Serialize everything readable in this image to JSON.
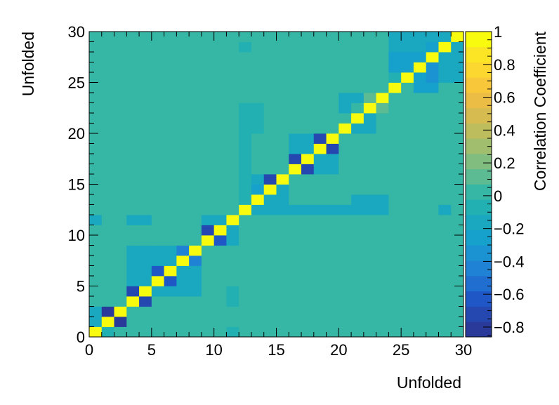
{
  "chart_data": {
    "type": "heatmap",
    "title": "",
    "xlabel": "Unfolded",
    "ylabel": "Unfolded",
    "zlabel": "Correlation Coefficient",
    "xlim": [
      0,
      30
    ],
    "ylim": [
      0,
      30
    ],
    "zlim": [
      -0.86,
      1.0
    ],
    "nbins": 30,
    "x_ticks": [
      "0",
      "5",
      "10",
      "15",
      "20",
      "25",
      "30"
    ],
    "y_ticks": [
      "0",
      "5",
      "10",
      "15",
      "20",
      "25",
      "30"
    ],
    "z_ticks": [
      "−0.8",
      "−0.6",
      "−0.4",
      "−0.2",
      "0",
      "0.2",
      "0.4",
      "0.6",
      "0.8",
      "1"
    ],
    "z_tick_values": [
      -0.8,
      -0.6,
      -0.4,
      -0.2,
      0,
      0.2,
      0.4,
      0.6,
      0.8,
      1
    ],
    "palette": [
      "#2a3a9a",
      "#2447b0",
      "#1f58c6",
      "#1f6ed0",
      "#1f82d4",
      "#1b93d2",
      "#16a0cc",
      "#1aa8c0",
      "#22b0b2",
      "#36b6a4",
      "#5cbb92",
      "#80bd7f",
      "#a0be6d",
      "#bdbd5e",
      "#d6bb50",
      "#ecbd44",
      "#f9c83a",
      "#fbd730",
      "#fbe524",
      "#f9fb0e"
    ],
    "background_value": 0.0,
    "cells": [
      {
        "x": 0,
        "y": 0,
        "v": 1
      },
      {
        "x": 1,
        "y": 1,
        "v": 1
      },
      {
        "x": 2,
        "y": 2,
        "v": 1
      },
      {
        "x": 3,
        "y": 3,
        "v": 1
      },
      {
        "x": 4,
        "y": 4,
        "v": 1
      },
      {
        "x": 5,
        "y": 5,
        "v": 1
      },
      {
        "x": 6,
        "y": 6,
        "v": 1
      },
      {
        "x": 7,
        "y": 7,
        "v": 1
      },
      {
        "x": 8,
        "y": 8,
        "v": 1
      },
      {
        "x": 9,
        "y": 9,
        "v": 1
      },
      {
        "x": 10,
        "y": 10,
        "v": 1
      },
      {
        "x": 11,
        "y": 11,
        "v": 1
      },
      {
        "x": 12,
        "y": 12,
        "v": 1
      },
      {
        "x": 13,
        "y": 13,
        "v": 1
      },
      {
        "x": 14,
        "y": 14,
        "v": 1
      },
      {
        "x": 15,
        "y": 15,
        "v": 1
      },
      {
        "x": 16,
        "y": 16,
        "v": 1
      },
      {
        "x": 17,
        "y": 17,
        "v": 1
      },
      {
        "x": 18,
        "y": 18,
        "v": 1
      },
      {
        "x": 19,
        "y": 19,
        "v": 1
      },
      {
        "x": 20,
        "y": 20,
        "v": 1
      },
      {
        "x": 21,
        "y": 21,
        "v": 1
      },
      {
        "x": 22,
        "y": 22,
        "v": 1
      },
      {
        "x": 23,
        "y": 23,
        "v": 1
      },
      {
        "x": 24,
        "y": 24,
        "v": 1
      },
      {
        "x": 25,
        "y": 25,
        "v": 1
      },
      {
        "x": 26,
        "y": 26,
        "v": 1
      },
      {
        "x": 27,
        "y": 27,
        "v": 1
      },
      {
        "x": 28,
        "y": 28,
        "v": 1
      },
      {
        "x": 29,
        "y": 29,
        "v": 1
      },
      {
        "x": 1,
        "y": 0,
        "v": -0.05
      },
      {
        "x": 0,
        "y": 1,
        "v": -0.12
      },
      {
        "x": 2,
        "y": 1,
        "v": -0.82
      },
      {
        "x": 1,
        "y": 2,
        "v": -0.82
      },
      {
        "x": 0,
        "y": 2,
        "v": -0.12
      },
      {
        "x": 4,
        "y": 3,
        "v": -0.72
      },
      {
        "x": 3,
        "y": 4,
        "v": -0.68
      },
      {
        "x": 5,
        "y": 4,
        "v": -0.12
      },
      {
        "x": 6,
        "y": 4,
        "v": -0.12
      },
      {
        "x": 7,
        "y": 4,
        "v": -0.12
      },
      {
        "x": 8,
        "y": 4,
        "v": -0.12
      },
      {
        "x": 11,
        "y": 3,
        "v": -0.05
      },
      {
        "x": 11,
        "y": 4,
        "v": -0.05
      },
      {
        "x": 6,
        "y": 5,
        "v": -0.6
      },
      {
        "x": 5,
        "y": 6,
        "v": -0.6
      },
      {
        "x": 7,
        "y": 5,
        "v": -0.18
      },
      {
        "x": 8,
        "y": 5,
        "v": -0.18
      },
      {
        "x": 7,
        "y": 6,
        "v": -0.18
      },
      {
        "x": 8,
        "y": 6,
        "v": -0.18
      },
      {
        "x": 8,
        "y": 7,
        "v": -0.42
      },
      {
        "x": 7,
        "y": 8,
        "v": -0.48
      },
      {
        "x": 3,
        "y": 5,
        "v": -0.12
      },
      {
        "x": 3,
        "y": 6,
        "v": -0.12
      },
      {
        "x": 3,
        "y": 7,
        "v": -0.12
      },
      {
        "x": 3,
        "y": 8,
        "v": -0.12
      },
      {
        "x": 4,
        "y": 5,
        "v": -0.12
      },
      {
        "x": 4,
        "y": 6,
        "v": -0.12
      },
      {
        "x": 4,
        "y": 7,
        "v": -0.12
      },
      {
        "x": 4,
        "y": 8,
        "v": -0.12
      },
      {
        "x": 5,
        "y": 7,
        "v": -0.18
      },
      {
        "x": 5,
        "y": 8,
        "v": -0.18
      },
      {
        "x": 6,
        "y": 7,
        "v": -0.18
      },
      {
        "x": 6,
        "y": 8,
        "v": -0.18
      },
      {
        "x": 10,
        "y": 9,
        "v": -0.6
      },
      {
        "x": 9,
        "y": 10,
        "v": -0.68
      },
      {
        "x": 11,
        "y": 9,
        "v": -0.12
      },
      {
        "x": 11,
        "y": 10,
        "v": -0.12
      },
      {
        "x": 9,
        "y": 11,
        "v": -0.12
      },
      {
        "x": 10,
        "y": 11,
        "v": -0.12
      },
      {
        "x": 0,
        "y": 11,
        "v": -0.12
      },
      {
        "x": 3,
        "y": 11,
        "v": -0.12
      },
      {
        "x": 4,
        "y": 11,
        "v": -0.12
      },
      {
        "x": 11,
        "y": 0,
        "v": -0.05
      },
      {
        "x": 12,
        "y": 13,
        "v": -0.05
      },
      {
        "x": 13,
        "y": 12,
        "v": -0.12
      },
      {
        "x": 14,
        "y": 12,
        "v": -0.12
      },
      {
        "x": 15,
        "y": 12,
        "v": -0.12
      },
      {
        "x": 16,
        "y": 12,
        "v": -0.12
      },
      {
        "x": 17,
        "y": 12,
        "v": -0.12
      },
      {
        "x": 18,
        "y": 12,
        "v": -0.12
      },
      {
        "x": 19,
        "y": 12,
        "v": -0.12
      },
      {
        "x": 20,
        "y": 12,
        "v": -0.12
      },
      {
        "x": 21,
        "y": 12,
        "v": -0.12
      },
      {
        "x": 22,
        "y": 12,
        "v": -0.12
      },
      {
        "x": 23,
        "y": 12,
        "v": -0.12
      },
      {
        "x": 21,
        "y": 13,
        "v": -0.12
      },
      {
        "x": 22,
        "y": 13,
        "v": -0.12
      },
      {
        "x": 23,
        "y": 13,
        "v": -0.12
      },
      {
        "x": 28,
        "y": 12,
        "v": -0.12
      },
      {
        "x": 13,
        "y": 14,
        "v": -0.3
      },
      {
        "x": 13,
        "y": 15,
        "v": -0.12
      },
      {
        "x": 15,
        "y": 14,
        "v": -0.2
      },
      {
        "x": 14,
        "y": 13,
        "v": -0.2
      },
      {
        "x": 15,
        "y": 13,
        "v": -0.12
      },
      {
        "x": 14,
        "y": 15,
        "v": -0.72
      },
      {
        "x": 15,
        "y": 14,
        "v": -0.2
      },
      {
        "x": 15,
        "y": 15,
        "v": 1
      },
      {
        "x": 14,
        "y": 14,
        "v": 1
      },
      {
        "x": 16,
        "y": 15,
        "v": -0.02
      },
      {
        "x": 16,
        "y": 14,
        "v": -0.02
      },
      {
        "x": 15,
        "y": 16,
        "v": -0.02
      },
      {
        "x": 16,
        "y": 16,
        "v": 1
      },
      {
        "x": 17,
        "y": 16,
        "v": -0.72
      },
      {
        "x": 16,
        "y": 17,
        "v": -0.72
      },
      {
        "x": 18,
        "y": 16,
        "v": -0.12
      },
      {
        "x": 19,
        "y": 16,
        "v": -0.12
      },
      {
        "x": 18,
        "y": 17,
        "v": -0.12
      },
      {
        "x": 19,
        "y": 17,
        "v": -0.12
      },
      {
        "x": 16,
        "y": 18,
        "v": -0.12
      },
      {
        "x": 17,
        "y": 18,
        "v": -0.12
      },
      {
        "x": 16,
        "y": 19,
        "v": -0.12
      },
      {
        "x": 17,
        "y": 19,
        "v": -0.12
      },
      {
        "x": 19,
        "y": 18,
        "v": -0.72
      },
      {
        "x": 18,
        "y": 19,
        "v": -0.72
      },
      {
        "x": 12,
        "y": 14,
        "v": -0.05
      },
      {
        "x": 12,
        "y": 15,
        "v": -0.05
      },
      {
        "x": 12,
        "y": 16,
        "v": -0.05
      },
      {
        "x": 12,
        "y": 17,
        "v": -0.05
      },
      {
        "x": 12,
        "y": 18,
        "v": -0.05
      },
      {
        "x": 12,
        "y": 19,
        "v": -0.05
      },
      {
        "x": 12,
        "y": 20,
        "v": -0.05
      },
      {
        "x": 12,
        "y": 21,
        "v": -0.05
      },
      {
        "x": 12,
        "y": 22,
        "v": -0.05
      },
      {
        "x": 13,
        "y": 20,
        "v": -0.05
      },
      {
        "x": 13,
        "y": 21,
        "v": -0.05
      },
      {
        "x": 13,
        "y": 22,
        "v": -0.05
      },
      {
        "x": 21,
        "y": 20,
        "v": -0.12
      },
      {
        "x": 22,
        "y": 20,
        "v": -0.12
      },
      {
        "x": 22,
        "y": 21,
        "v": -0.12
      },
      {
        "x": 20,
        "y": 22,
        "v": -0.12
      },
      {
        "x": 20,
        "y": 23,
        "v": -0.12
      },
      {
        "x": 21,
        "y": 23,
        "v": -0.12
      },
      {
        "x": 22,
        "y": 23,
        "v": 0.1
      },
      {
        "x": 23,
        "y": 22,
        "v": 0.1
      },
      {
        "x": 24,
        "y": 25,
        "v": -0.05
      },
      {
        "x": 24,
        "y": 26,
        "v": -0.3
      },
      {
        "x": 24,
        "y": 27,
        "v": -0.3
      },
      {
        "x": 25,
        "y": 26,
        "v": -0.3
      },
      {
        "x": 25,
        "y": 27,
        "v": -0.3
      },
      {
        "x": 26,
        "y": 27,
        "v": -0.3
      },
      {
        "x": 26,
        "y": 25,
        "v": -0.3
      },
      {
        "x": 27,
        "y": 25,
        "v": -0.35
      },
      {
        "x": 27,
        "y": 26,
        "v": -0.35
      },
      {
        "x": 26,
        "y": 24,
        "v": -0.3
      },
      {
        "x": 27,
        "y": 24,
        "v": -0.3
      },
      {
        "x": 28,
        "y": 25,
        "v": -0.12
      },
      {
        "x": 28,
        "y": 26,
        "v": -0.12
      },
      {
        "x": 28,
        "y": 27,
        "v": -0.12
      },
      {
        "x": 29,
        "y": 25,
        "v": -0.12
      },
      {
        "x": 29,
        "y": 26,
        "v": -0.12
      },
      {
        "x": 29,
        "y": 27,
        "v": -0.12
      },
      {
        "x": 29,
        "y": 28,
        "v": -0.12
      },
      {
        "x": 24,
        "y": 28,
        "v": -0.12
      },
      {
        "x": 25,
        "y": 28,
        "v": -0.12
      },
      {
        "x": 26,
        "y": 28,
        "v": -0.12
      },
      {
        "x": 24,
        "y": 29,
        "v": -0.12
      },
      {
        "x": 25,
        "y": 29,
        "v": -0.12
      },
      {
        "x": 26,
        "y": 29,
        "v": -0.12
      },
      {
        "x": 27,
        "y": 29,
        "v": -0.12
      },
      {
        "x": 28,
        "y": 29,
        "v": -0.2
      },
      {
        "x": 27,
        "y": 28,
        "v": -0.3
      },
      {
        "x": 12,
        "y": 28,
        "v": -0.05
      }
    ]
  }
}
